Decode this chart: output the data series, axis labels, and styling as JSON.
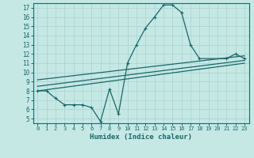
{
  "xlabel": "Humidex (Indice chaleur)",
  "bg_color": "#c5e8e5",
  "grid_color": "#b0d8d5",
  "line_color": "#1a6868",
  "xlim": [
    -0.5,
    23.5
  ],
  "ylim": [
    4.5,
    17.5
  ],
  "xticks": [
    0,
    1,
    2,
    3,
    4,
    5,
    6,
    7,
    8,
    9,
    10,
    11,
    12,
    13,
    14,
    15,
    16,
    17,
    18,
    19,
    20,
    21,
    22,
    23
  ],
  "yticks": [
    5,
    6,
    7,
    8,
    9,
    10,
    11,
    12,
    13,
    14,
    15,
    16,
    17
  ],
  "curve_x": [
    0,
    1,
    2,
    3,
    4,
    5,
    6,
    7,
    8,
    9,
    10,
    11,
    12,
    13,
    14,
    15,
    16,
    17,
    18,
    21,
    22,
    23
  ],
  "curve_y": [
    8.0,
    8.0,
    7.2,
    6.5,
    6.5,
    6.5,
    6.2,
    4.7,
    8.2,
    5.5,
    11.0,
    13.0,
    14.8,
    16.0,
    17.3,
    17.3,
    16.5,
    13.0,
    11.5,
    11.5,
    12.0,
    11.5
  ],
  "line1_x": [
    0,
    23
  ],
  "line1_y": [
    8.0,
    11.0
  ],
  "line2_x": [
    0,
    23
  ],
  "line2_y": [
    8.5,
    11.3
  ],
  "line3_x": [
    0,
    23
  ],
  "line3_y": [
    9.2,
    11.8
  ]
}
